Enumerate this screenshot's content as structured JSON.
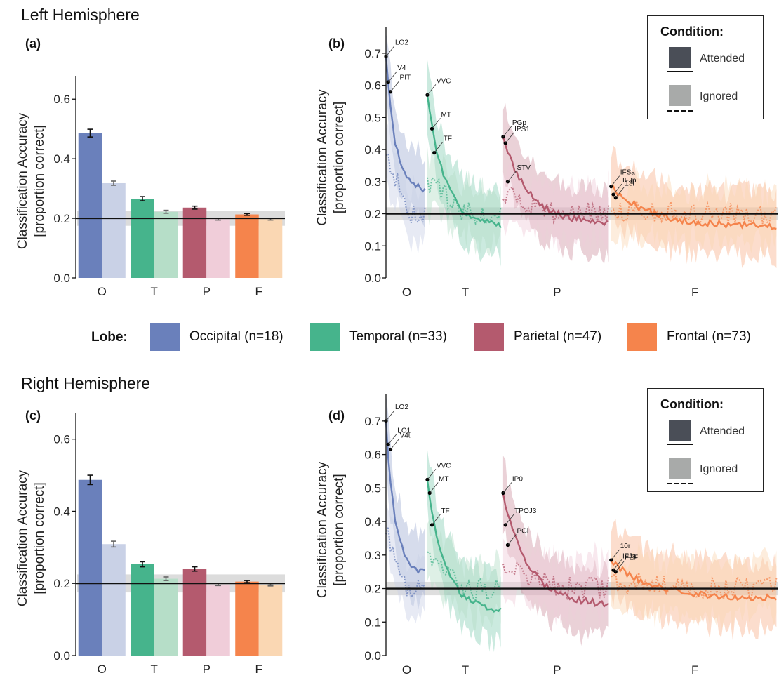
{
  "figure": {
    "left_title": "Left Hemisphere",
    "right_title": "Right Hemisphere",
    "panel_labels": {
      "a": "(a)",
      "b": "(b)",
      "c": "(c)",
      "d": "(d)"
    },
    "ylabel_line1": "Classification Accuracy",
    "ylabel_line2": "[proportion correct]",
    "lobe_legend_title": "Lobe:",
    "lobes": [
      {
        "label": "Occipital (n=18)",
        "color": "#6a80bb"
      },
      {
        "label": "Temporal (n=33)",
        "color": "#46b48c"
      },
      {
        "label": "Parietal (n=47)",
        "color": "#b45a6e"
      },
      {
        "label": "Frontal (n=73)",
        "color": "#f5844c"
      }
    ],
    "condition_legend": {
      "title": "Condition:",
      "attended": "Attended",
      "ignored": "Ignored",
      "attended_swatch": "#4a4e57",
      "ignored_swatch": "#a8aaa9"
    },
    "ignored_colors": [
      "#c9d1e6",
      "#b6dec8",
      "#f0cdd9",
      "#fad7b3"
    ]
  },
  "chart_data": [
    {
      "id": "a",
      "type": "bar",
      "categories": [
        "O",
        "T",
        "P",
        "F"
      ],
      "ylim": [
        0,
        0.65
      ],
      "yticks": [
        "0.0",
        "0.2",
        "0.4",
        "0.6"
      ],
      "chance": 0.2,
      "series": [
        {
          "name": "Attended",
          "values": [
            0.486,
            0.266,
            0.236,
            0.213
          ],
          "errors": [
            0.013,
            0.007,
            0.005,
            0.003
          ]
        },
        {
          "name": "Ignored",
          "values": [
            0.318,
            0.222,
            0.197,
            0.197
          ],
          "errors": [
            0.007,
            0.005,
            0.003,
            0.003
          ]
        }
      ]
    },
    {
      "id": "c",
      "type": "bar",
      "categories": [
        "O",
        "T",
        "P",
        "F"
      ],
      "ylim": [
        0,
        0.65
      ],
      "yticks": [
        "0.0",
        "0.2",
        "0.4",
        "0.6"
      ],
      "chance": 0.2,
      "series": [
        {
          "name": "Attended",
          "values": [
            0.487,
            0.253,
            0.24,
            0.205
          ],
          "errors": [
            0.013,
            0.007,
            0.006,
            0.003
          ]
        },
        {
          "name": "Ignored",
          "values": [
            0.309,
            0.213,
            0.197,
            0.196
          ],
          "errors": [
            0.008,
            0.005,
            0.003,
            0.003
          ]
        }
      ]
    },
    {
      "id": "b",
      "type": "line",
      "categories": [
        "O",
        "T",
        "P",
        "F"
      ],
      "region_counts": [
        18,
        33,
        47,
        73
      ],
      "ylim": [
        0,
        0.75
      ],
      "yticks": [
        "0.0",
        "0.1",
        "0.2",
        "0.3",
        "0.4",
        "0.5",
        "0.6",
        "0.7"
      ],
      "chance": 0.2,
      "seed": 7,
      "start": [
        0.69,
        0.57,
        0.44,
        0.285
      ],
      "end": [
        0.27,
        0.16,
        0.17,
        0.16
      ],
      "ignored_level": [
        0.4,
        0.3,
        0.26,
        0.21
      ],
      "labels": [
        {
          "text": "LO2",
          "lobe": 0,
          "i": 0,
          "y": 0.69
        },
        {
          "text": "V4",
          "lobe": 0,
          "i": 1,
          "y": 0.61
        },
        {
          "text": "PIT",
          "lobe": 0,
          "i": 2,
          "y": 0.58
        },
        {
          "text": "VVC",
          "lobe": 1,
          "i": 0,
          "y": 0.57
        },
        {
          "text": "MT",
          "lobe": 1,
          "i": 2,
          "y": 0.465
        },
        {
          "text": "TF",
          "lobe": 1,
          "i": 3,
          "y": 0.39
        },
        {
          "text": "PGp",
          "lobe": 2,
          "i": 0,
          "y": 0.44
        },
        {
          "text": "IPS1",
          "lobe": 2,
          "i": 1,
          "y": 0.42
        },
        {
          "text": "STV",
          "lobe": 2,
          "i": 2,
          "y": 0.3
        },
        {
          "text": "IFSa",
          "lobe": 3,
          "i": 0,
          "y": 0.285
        },
        {
          "text": "IFJp",
          "lobe": 3,
          "i": 1,
          "y": 0.26
        },
        {
          "text": "13l",
          "lobe": 3,
          "i": 2,
          "y": 0.25
        }
      ]
    },
    {
      "id": "d",
      "type": "line",
      "categories": [
        "O",
        "T",
        "P",
        "F"
      ],
      "region_counts": [
        18,
        33,
        47,
        73
      ],
      "ylim": [
        0,
        0.75
      ],
      "yticks": [
        "0.0",
        "0.1",
        "0.2",
        "0.3",
        "0.4",
        "0.5",
        "0.6",
        "0.7"
      ],
      "chance": 0.2,
      "seed": 19,
      "start": [
        0.7,
        0.525,
        0.485,
        0.285
      ],
      "end": [
        0.24,
        0.13,
        0.15,
        0.17
      ],
      "ignored_level": [
        0.38,
        0.3,
        0.27,
        0.22
      ],
      "labels": [
        {
          "text": "LO2",
          "lobe": 0,
          "i": 0,
          "y": 0.7
        },
        {
          "text": "LO1",
          "lobe": 0,
          "i": 1,
          "y": 0.63
        },
        {
          "text": "V4t",
          "lobe": 0,
          "i": 2,
          "y": 0.615
        },
        {
          "text": "VVC",
          "lobe": 1,
          "i": 0,
          "y": 0.525
        },
        {
          "text": "MT",
          "lobe": 1,
          "i": 1,
          "y": 0.485
        },
        {
          "text": "TF",
          "lobe": 1,
          "i": 2,
          "y": 0.39
        },
        {
          "text": "IP0",
          "lobe": 2,
          "i": 0,
          "y": 0.485
        },
        {
          "text": "TPOJ3",
          "lobe": 2,
          "i": 1,
          "y": 0.39
        },
        {
          "text": "PGi",
          "lobe": 2,
          "i": 2,
          "y": 0.33
        },
        {
          "text": "10r",
          "lobe": 3,
          "i": 0,
          "y": 0.285
        },
        {
          "text": "IFJa",
          "lobe": 3,
          "i": 1,
          "y": 0.255
        },
        {
          "text": "FEF",
          "lobe": 3,
          "i": 2,
          "y": 0.25
        }
      ]
    }
  ]
}
